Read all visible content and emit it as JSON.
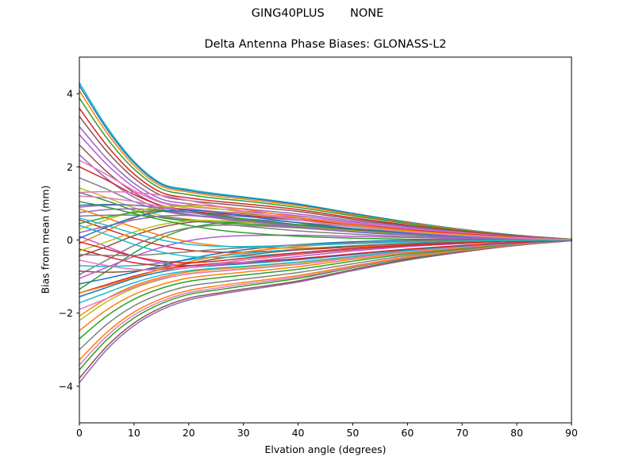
{
  "chart_data": {
    "type": "line",
    "suptitle": "GING40PLUS       NONE",
    "title": "Delta Antenna Phase Biases: GLONASS-L2",
    "xlabel": "Elvation angle (degrees)",
    "ylabel": "Bias from mean (mm)",
    "xlim": [
      0,
      90
    ],
    "ylim": [
      -5,
      5.05
    ],
    "grid": false,
    "legend": "none",
    "xticks": {
      "values": [
        0,
        10,
        20,
        30,
        40,
        50,
        60,
        70,
        80,
        90
      ],
      "labels": [
        "0",
        "10",
        "20",
        "30",
        "40",
        "50",
        "60",
        "70",
        "80",
        "90"
      ]
    },
    "yticks": {
      "values": [
        4,
        2,
        0,
        -2,
        -4
      ],
      "labels": [
        "4",
        "2",
        "0",
        "−2",
        "−4"
      ]
    },
    "palette": [
      "#1f77b4",
      "#ff7f0e",
      "#2ca02c",
      "#d62728",
      "#9467bd",
      "#8c564b",
      "#e377c2",
      "#7f7f7f",
      "#bcbd22",
      "#17becf",
      "#ba55d3"
    ],
    "x": [
      0,
      5,
      10,
      15,
      20,
      25,
      30,
      40,
      50,
      60,
      70,
      80,
      90
    ],
    "series": [
      {
        "c": 9,
        "v": [
          4.3,
          3.1,
          2.15,
          1.55,
          1.38,
          1.27,
          1.18,
          0.99,
          0.73,
          0.49,
          0.29,
          0.13,
          0.02
        ]
      },
      {
        "c": 0,
        "v": [
          4.22,
          3.04,
          2.11,
          1.52,
          1.35,
          1.24,
          1.16,
          0.97,
          0.72,
          0.49,
          0.29,
          0.13,
          0.02
        ]
      },
      {
        "c": 1,
        "v": [
          4.08,
          2.94,
          2.04,
          1.47,
          1.31,
          1.2,
          1.12,
          0.94,
          0.69,
          0.47,
          0.28,
          0.12,
          0.02
        ]
      },
      {
        "c": 2,
        "v": [
          3.88,
          2.79,
          1.94,
          1.4,
          1.24,
          1.14,
          1.07,
          0.89,
          0.66,
          0.45,
          0.26,
          0.12,
          0.02
        ]
      },
      {
        "c": 3,
        "v": [
          3.6,
          2.59,
          1.8,
          1.3,
          1.15,
          1.06,
          0.99,
          0.83,
          0.61,
          0.41,
          0.24,
          0.11,
          0.01
        ]
      },
      {
        "c": 5,
        "v": [
          3.38,
          2.43,
          1.69,
          1.22,
          1.08,
          1.0,
          0.93,
          0.78,
          0.57,
          0.39,
          0.23,
          0.1,
          0.01
        ]
      },
      {
        "c": 4,
        "v": [
          3.1,
          2.23,
          1.55,
          1.12,
          0.99,
          0.91,
          0.85,
          0.71,
          0.53,
          0.36,
          0.21,
          0.09,
          0.01
        ]
      },
      {
        "c": 10,
        "v": [
          2.88,
          2.07,
          1.44,
          1.04,
          0.92,
          0.85,
          0.79,
          0.66,
          0.49,
          0.33,
          0.2,
          0.09,
          0.01
        ]
      },
      {
        "c": 5,
        "v": [
          2.6,
          1.87,
          1.3,
          0.94,
          0.83,
          0.77,
          0.72,
          0.6,
          0.44,
          0.3,
          0.18,
          0.08,
          0.01
        ]
      },
      {
        "c": 4,
        "v": [
          2.33,
          1.68,
          1.17,
          0.84,
          0.75,
          0.69,
          0.64,
          0.54,
          0.4,
          0.27,
          0.16,
          0.07,
          0.01
        ]
      },
      {
        "c": 6,
        "v": [
          2.18,
          1.79,
          1.35,
          1.02,
          0.87,
          0.78,
          0.74,
          0.61,
          0.46,
          0.31,
          0.19,
          0.09,
          0.01
        ]
      },
      {
        "c": 3,
        "v": [
          2.0,
          1.64,
          1.24,
          0.94,
          0.8,
          0.72,
          0.68,
          0.56,
          0.42,
          0.28,
          0.17,
          0.08,
          0.01
        ]
      },
      {
        "c": 7,
        "v": [
          1.7,
          1.39,
          1.05,
          0.8,
          0.68,
          0.61,
          0.58,
          0.48,
          0.36,
          0.24,
          0.14,
          0.07,
          0.01
        ]
      },
      {
        "c": 8,
        "v": [
          1.42,
          1.16,
          0.88,
          0.67,
          0.57,
          0.51,
          0.48,
          0.4,
          0.3,
          0.2,
          0.12,
          0.06,
          0.01
        ]
      },
      {
        "c": 2,
        "v": [
          1.3,
          1.07,
          0.81,
          0.61,
          0.52,
          0.47,
          0.44,
          0.36,
          0.27,
          0.18,
          0.11,
          0.05,
          0.01
        ]
      },
      {
        "c": 4,
        "v": [
          -3.9,
          -3.0,
          -2.34,
          -1.91,
          -1.64,
          -1.5,
          -1.38,
          -1.15,
          -0.84,
          -0.55,
          -0.33,
          -0.15,
          -0.02
        ]
      },
      {
        "c": 5,
        "v": [
          -3.78,
          -2.91,
          -2.27,
          -1.85,
          -1.59,
          -1.46,
          -1.34,
          -1.12,
          -0.81,
          -0.53,
          -0.32,
          -0.14,
          -0.02
        ]
      },
      {
        "c": 2,
        "v": [
          -3.55,
          -2.73,
          -2.13,
          -1.74,
          -1.49,
          -1.37,
          -1.26,
          -1.05,
          -0.76,
          -0.5,
          -0.3,
          -0.13,
          -0.01
        ]
      },
      {
        "c": 6,
        "v": [
          -3.42,
          -2.63,
          -2.05,
          -1.68,
          -1.44,
          -1.32,
          -1.21,
          -1.01,
          -0.74,
          -0.48,
          -0.29,
          -0.13,
          -0.01
        ]
      },
      {
        "c": 1,
        "v": [
          -3.28,
          -2.53,
          -1.97,
          -1.61,
          -1.38,
          -1.26,
          -1.16,
          -0.97,
          -0.71,
          -0.46,
          -0.28,
          -0.12,
          -0.01
        ]
      },
      {
        "c": 7,
        "v": [
          -3.0,
          -2.31,
          -1.8,
          -1.47,
          -1.26,
          -1.16,
          -1.07,
          -0.89,
          -0.65,
          -0.42,
          -0.26,
          -0.11,
          -0.01
        ]
      },
      {
        "c": 2,
        "v": [
          -2.7,
          -2.08,
          -1.62,
          -1.32,
          -1.13,
          -1.04,
          -0.96,
          -0.8,
          -0.58,
          -0.38,
          -0.23,
          -0.1,
          -0.01
        ]
      },
      {
        "c": 1,
        "v": [
          -2.48,
          -1.91,
          -1.49,
          -1.22,
          -1.04,
          -0.95,
          -0.88,
          -0.73,
          -0.53,
          -0.35,
          -0.21,
          -0.09,
          -0.01
        ]
      },
      {
        "c": 8,
        "v": [
          -2.2,
          -1.69,
          -1.32,
          -1.08,
          -0.92,
          -0.85,
          -0.78,
          -0.65,
          -0.47,
          -0.31,
          -0.19,
          -0.08,
          -0.01
        ]
      },
      {
        "c": 1,
        "v": [
          -2.08,
          -1.6,
          -1.25,
          -1.02,
          -0.87,
          -0.8,
          -0.74,
          -0.61,
          -0.45,
          -0.29,
          -0.18,
          -0.08,
          -0.01
        ]
      },
      {
        "c": 6,
        "v": [
          -1.9,
          -1.6,
          -1.29,
          -1.06,
          -0.93,
          -0.86,
          -0.8,
          -0.67,
          -0.49,
          -0.32,
          -0.19,
          -0.09,
          -0.01
        ]
      },
      {
        "c": 9,
        "v": [
          -1.72,
          -1.44,
          -1.17,
          -0.96,
          -0.84,
          -0.77,
          -0.72,
          -0.6,
          -0.45,
          -0.29,
          -0.17,
          -0.08,
          -0.01
        ]
      },
      {
        "c": 0,
        "v": [
          -1.55,
          -1.3,
          -1.05,
          -0.87,
          -0.76,
          -0.7,
          -0.65,
          -0.54,
          -0.4,
          -0.26,
          -0.16,
          -0.07,
          -0.01
        ]
      },
      {
        "c": 3,
        "v": [
          -1.45,
          -1.22,
          -0.99,
          -0.81,
          -0.71,
          -0.65,
          -0.61,
          -0.51,
          -0.38,
          -0.25,
          -0.15,
          -0.07,
          -0.01
        ]
      },
      {
        "c": 0,
        "v": [
          0.95,
          0.97,
          0.95,
          0.88,
          0.78,
          0.68,
          0.58,
          0.42,
          0.3,
          0.2,
          0.12,
          0.05,
          0.01
        ]
      },
      {
        "c": 1,
        "v": [
          -0.1,
          0.25,
          0.6,
          0.85,
          0.95,
          0.92,
          0.84,
          0.62,
          0.42,
          0.26,
          0.15,
          0.06,
          0.01
        ]
      },
      {
        "c": 2,
        "v": [
          -1.35,
          -0.85,
          -0.35,
          0.05,
          0.32,
          0.45,
          0.48,
          0.42,
          0.31,
          0.2,
          0.11,
          0.05,
          0.01
        ]
      },
      {
        "c": 3,
        "v": [
          0.55,
          0.3,
          0.05,
          -0.15,
          -0.28,
          -0.33,
          -0.33,
          -0.27,
          -0.19,
          -0.12,
          -0.07,
          -0.03,
          0.0
        ]
      },
      {
        "c": 4,
        "v": [
          0.75,
          0.83,
          0.85,
          0.8,
          0.7,
          0.6,
          0.5,
          0.34,
          0.22,
          0.13,
          0.07,
          0.03,
          0.0
        ]
      },
      {
        "c": 5,
        "v": [
          -0.45,
          -0.18,
          0.12,
          0.35,
          0.48,
          0.52,
          0.5,
          0.4,
          0.28,
          0.17,
          0.09,
          0.04,
          0.01
        ]
      },
      {
        "c": 6,
        "v": [
          1.2,
          1.15,
          1.05,
          0.92,
          0.78,
          0.65,
          0.54,
          0.37,
          0.24,
          0.15,
          0.08,
          0.03,
          0.0
        ]
      },
      {
        "c": 7,
        "v": [
          -0.95,
          -0.55,
          -0.15,
          0.15,
          0.33,
          0.4,
          0.4,
          0.33,
          0.23,
          0.14,
          0.08,
          0.03,
          0.01
        ]
      },
      {
        "c": 8,
        "v": [
          0.3,
          0.55,
          0.78,
          0.9,
          0.92,
          0.86,
          0.76,
          0.55,
          0.37,
          0.23,
          0.13,
          0.05,
          0.01
        ]
      },
      {
        "c": 9,
        "v": [
          -0.7,
          -0.72,
          -0.7,
          -0.63,
          -0.54,
          -0.45,
          -0.37,
          -0.25,
          -0.16,
          -0.1,
          -0.05,
          -0.02,
          0.0
        ]
      },
      {
        "c": 10,
        "v": [
          0.1,
          -0.18,
          -0.45,
          -0.63,
          -0.7,
          -0.68,
          -0.61,
          -0.45,
          -0.3,
          -0.18,
          -0.1,
          -0.04,
          -0.01
        ]
      },
      {
        "c": 0,
        "v": [
          -1.2,
          -1.05,
          -0.88,
          -0.7,
          -0.52,
          -0.38,
          -0.27,
          -0.13,
          -0.05,
          -0.01,
          0.0,
          0.0,
          0.0
        ]
      },
      {
        "c": 1,
        "v": [
          0.85,
          0.6,
          0.35,
          0.12,
          -0.05,
          -0.15,
          -0.2,
          -0.22,
          -0.18,
          -0.12,
          -0.07,
          -0.03,
          0.0
        ]
      },
      {
        "c": 2,
        "v": [
          0.45,
          0.62,
          0.75,
          0.8,
          0.76,
          0.67,
          0.57,
          0.4,
          0.26,
          0.16,
          0.09,
          0.04,
          0.01
        ]
      },
      {
        "c": 3,
        "v": [
          -0.25,
          -0.45,
          -0.62,
          -0.7,
          -0.7,
          -0.64,
          -0.55,
          -0.39,
          -0.26,
          -0.16,
          -0.09,
          -0.04,
          -0.01
        ]
      },
      {
        "c": 4,
        "v": [
          0.2,
          0.38,
          0.55,
          0.65,
          0.67,
          0.62,
          0.54,
          0.38,
          0.25,
          0.15,
          0.08,
          0.03,
          0.0
        ]
      },
      {
        "c": 5,
        "v": [
          -0.85,
          -0.88,
          -0.85,
          -0.76,
          -0.64,
          -0.52,
          -0.42,
          -0.27,
          -0.17,
          -0.1,
          -0.05,
          -0.02,
          0.0
        ]
      },
      {
        "c": 6,
        "v": [
          -0.55,
          -0.7,
          -0.8,
          -0.82,
          -0.76,
          -0.66,
          -0.55,
          -0.37,
          -0.24,
          -0.14,
          -0.08,
          -0.03,
          0.0
        ]
      },
      {
        "c": 7,
        "v": [
          0.65,
          0.68,
          0.68,
          0.63,
          0.55,
          0.46,
          0.38,
          0.25,
          0.16,
          0.09,
          0.05,
          0.02,
          0.0
        ]
      },
      {
        "c": 8,
        "v": [
          -0.3,
          -0.05,
          0.22,
          0.42,
          0.52,
          0.53,
          0.49,
          0.37,
          0.25,
          0.15,
          0.08,
          0.03,
          0.01
        ]
      },
      {
        "c": 9,
        "v": [
          0.4,
          0.15,
          -0.12,
          -0.33,
          -0.45,
          -0.48,
          -0.45,
          -0.35,
          -0.23,
          -0.14,
          -0.08,
          -0.03,
          0.0
        ]
      },
      {
        "c": 10,
        "v": [
          -1.05,
          -0.75,
          -0.45,
          -0.2,
          -0.02,
          0.08,
          0.12,
          0.13,
          0.1,
          0.07,
          0.04,
          0.02,
          0.0
        ]
      },
      {
        "c": 0,
        "v": [
          0.05,
          0.35,
          0.62,
          0.78,
          0.82,
          0.76,
          0.66,
          0.47,
          0.31,
          0.19,
          0.1,
          0.04,
          0.01
        ]
      },
      {
        "c": 1,
        "v": [
          -1.45,
          -1.25,
          -1.02,
          -0.8,
          -0.6,
          -0.45,
          -0.33,
          -0.18,
          -0.09,
          -0.04,
          -0.02,
          -0.01,
          0.0
        ]
      },
      {
        "c": 2,
        "v": [
          1.05,
          0.9,
          0.72,
          0.55,
          0.4,
          0.28,
          0.2,
          0.1,
          0.05,
          0.02,
          0.01,
          0.0,
          0.0
        ]
      },
      {
        "c": 3,
        "v": [
          -0.05,
          -0.25,
          -0.45,
          -0.58,
          -0.62,
          -0.58,
          -0.5,
          -0.35,
          -0.23,
          -0.14,
          -0.08,
          -0.03,
          0.0
        ]
      },
      {
        "c": 4,
        "v": [
          0.9,
          0.95,
          0.95,
          0.88,
          0.76,
          0.64,
          0.53,
          0.36,
          0.23,
          0.14,
          0.07,
          0.03,
          0.0
        ]
      },
      {
        "c": 7,
        "v": [
          -0.4,
          -0.42,
          -0.42,
          -0.38,
          -0.32,
          -0.26,
          -0.21,
          -0.13,
          -0.08,
          -0.05,
          -0.02,
          -0.01,
          0.0
        ]
      },
      {
        "c": 9,
        "v": [
          0.6,
          0.4,
          0.18,
          0.0,
          -0.12,
          -0.17,
          -0.18,
          -0.15,
          -0.1,
          -0.06,
          -0.03,
          -0.01,
          0.0
        ]
      },
      {
        "c": 6,
        "v": [
          1.3,
          1.32,
          1.3,
          1.22,
          1.08,
          0.93,
          0.79,
          0.55,
          0.36,
          0.22,
          0.12,
          0.05,
          0.01
        ]
      }
    ]
  }
}
